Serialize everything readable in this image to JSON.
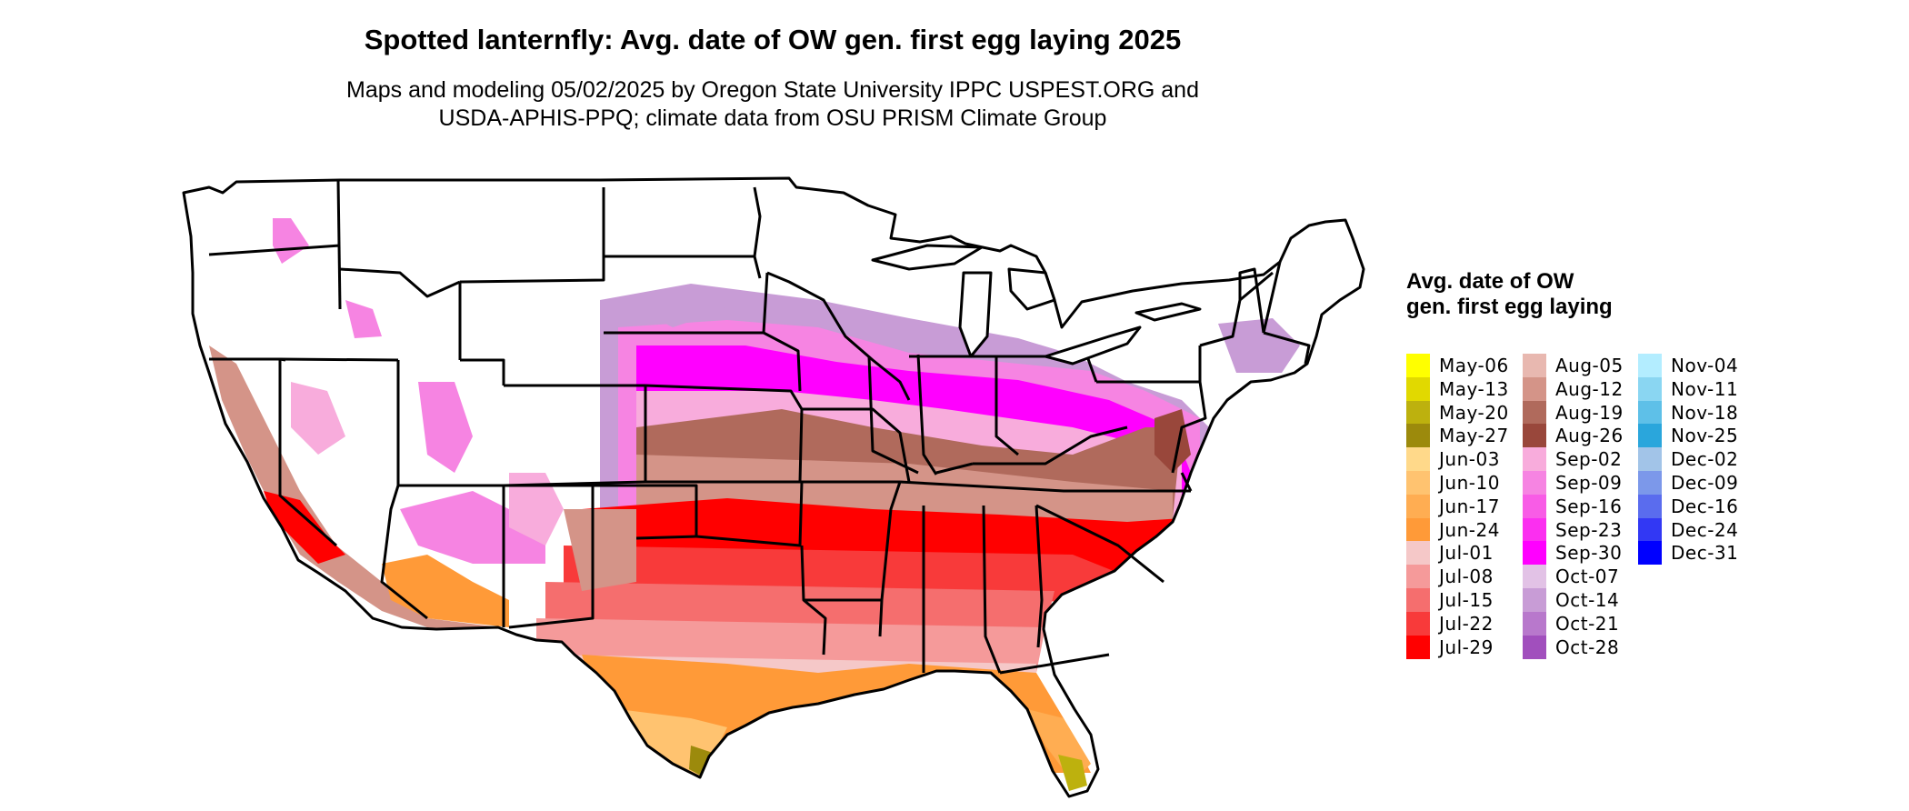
{
  "title": "Spotted lanternfly: Avg. date of OW gen. first egg laying 2025",
  "subtitle_line1": "Maps and modeling 05/02/2025 by Oregon State University IPPC USPEST.ORG and",
  "subtitle_line2": "USDA-APHIS-PPQ; climate data from OSU PRISM Climate Group",
  "legend": {
    "title": "Avg. date of OW gen. first egg laying",
    "items": [
      {
        "label": "May-06",
        "color": "#ffff00"
      },
      {
        "label": "May-13",
        "color": "#e1d900"
      },
      {
        "label": "May-20",
        "color": "#bdb10e"
      },
      {
        "label": "May-27",
        "color": "#9c8a0c"
      },
      {
        "label": "Jun-03",
        "color": "#ffd98a"
      },
      {
        "label": "Jun-10",
        "color": "#ffc370"
      },
      {
        "label": "Jun-17",
        "color": "#ffad52"
      },
      {
        "label": "Jun-24",
        "color": "#ff9a38"
      },
      {
        "label": "Jul-01",
        "color": "#f5c8c8"
      },
      {
        "label": "Jul-08",
        "color": "#f59a9a"
      },
      {
        "label": "Jul-15",
        "color": "#f56e6e"
      },
      {
        "label": "Jul-22",
        "color": "#f83a3a"
      },
      {
        "label": "Jul-29",
        "color": "#ff0000"
      },
      {
        "label": "Aug-05",
        "color": "#e8b8b0"
      },
      {
        "label": "Aug-12",
        "color": "#d49488"
      },
      {
        "label": "Aug-19",
        "color": "#b06a5c"
      },
      {
        "label": "Aug-26",
        "color": "#99473b"
      },
      {
        "label": "Sep-02",
        "color": "#f8acdc"
      },
      {
        "label": "Sep-09",
        "color": "#f684e2"
      },
      {
        "label": "Sep-16",
        "color": "#f85ce6"
      },
      {
        "label": "Sep-23",
        "color": "#fb2ff0"
      },
      {
        "label": "Sep-30",
        "color": "#ff00ff"
      },
      {
        "label": "Oct-07",
        "color": "#e2c2e6"
      },
      {
        "label": "Oct-14",
        "color": "#c89cd6"
      },
      {
        "label": "Oct-21",
        "color": "#b878cc"
      },
      {
        "label": "Oct-28",
        "color": "#a14fbd"
      },
      {
        "label": "Nov-04",
        "color": "#b3edff"
      },
      {
        "label": "Nov-11",
        "color": "#8ad6f2"
      },
      {
        "label": "Nov-18",
        "color": "#5ec0e8"
      },
      {
        "label": "Nov-25",
        "color": "#2aa6dc"
      },
      {
        "label": "Dec-02",
        "color": "#a2c4e8"
      },
      {
        "label": "Dec-09",
        "color": "#7c98ea"
      },
      {
        "label": "Dec-16",
        "color": "#5a6cee"
      },
      {
        "label": "Dec-24",
        "color": "#3238f4"
      },
      {
        "label": "Dec-31",
        "color": "#0000ff"
      }
    ]
  }
}
